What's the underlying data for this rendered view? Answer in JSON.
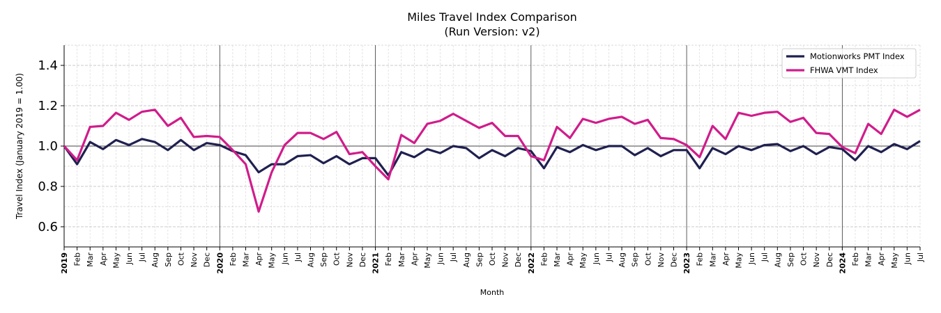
{
  "chart_data": {
    "type": "line",
    "title": "Miles Travel Index Comparison",
    "subtitle": "(Run Version: v2)",
    "x_label": "Month",
    "y_label": "Travel Index (January 2019 = 1.00)",
    "categories": [
      "2019",
      "Feb",
      "Mar",
      "Apr",
      "May",
      "Jun",
      "Jul",
      "Aug",
      "Sep",
      "Oct",
      "Nov",
      "Dec",
      "2020",
      "Feb",
      "Mar",
      "Apr",
      "May",
      "Jun",
      "Jul",
      "Aug",
      "Sep",
      "Oct",
      "Nov",
      "Dec",
      "2021",
      "Feb",
      "Mar",
      "Apr",
      "May",
      "Jun",
      "Jul",
      "Aug",
      "Sep",
      "Oct",
      "Nov",
      "Dec",
      "2022",
      "Feb",
      "Mar",
      "Apr",
      "May",
      "Jun",
      "Jul",
      "Aug",
      "Sep",
      "Oct",
      "Nov",
      "Dec",
      "2023",
      "Feb",
      "Mar",
      "Apr",
      "May",
      "Jun",
      "Jul",
      "Aug",
      "Sep",
      "Oct",
      "Nov",
      "Dec",
      "2024",
      "Feb",
      "Mar",
      "Apr",
      "May",
      "Jun",
      "Jul"
    ],
    "series": [
      {
        "name": "Motionworks PMT Index",
        "color": "#1f2050",
        "values": [
          1.0,
          0.91,
          1.02,
          0.985,
          1.03,
          1.005,
          1.035,
          1.02,
          0.98,
          1.03,
          0.98,
          1.015,
          1.005,
          0.975,
          0.955,
          0.87,
          0.91,
          0.91,
          0.95,
          0.955,
          0.915,
          0.95,
          0.91,
          0.94,
          0.94,
          0.855,
          0.97,
          0.945,
          0.985,
          0.965,
          1.0,
          0.99,
          0.94,
          0.98,
          0.95,
          0.99,
          0.975,
          0.89,
          0.995,
          0.97,
          1.005,
          0.98,
          1.0,
          1.0,
          0.955,
          0.99,
          0.95,
          0.98,
          0.98,
          0.89,
          0.99,
          0.96,
          1.0,
          0.98,
          1.005,
          1.01,
          0.975,
          1.0,
          0.96,
          0.995,
          0.985,
          0.93,
          1.0,
          0.97,
          1.01,
          0.985,
          1.025
        ]
      },
      {
        "name": "FHWA VMT Index",
        "color": "#d01c8b",
        "values": [
          1.0,
          0.93,
          1.095,
          1.1,
          1.165,
          1.13,
          1.17,
          1.18,
          1.1,
          1.14,
          1.045,
          1.05,
          1.045,
          0.98,
          0.91,
          0.675,
          0.87,
          1.005,
          1.065,
          1.065,
          1.035,
          1.07,
          0.96,
          0.97,
          0.9,
          0.835,
          1.055,
          1.015,
          1.11,
          1.125,
          1.16,
          1.125,
          1.09,
          1.115,
          1.05,
          1.05,
          0.95,
          0.93,
          1.095,
          1.04,
          1.135,
          1.115,
          1.135,
          1.145,
          1.11,
          1.13,
          1.04,
          1.035,
          1.005,
          0.945,
          1.1,
          1.035,
          1.165,
          1.15,
          1.165,
          1.17,
          1.12,
          1.14,
          1.065,
          1.06,
          0.995,
          0.965,
          1.11,
          1.06,
          1.18,
          1.145,
          1.18
        ]
      }
    ],
    "ylim": [
      0.5,
      1.5
    ],
    "yticks": [
      0.6,
      0.8,
      {
        "value": 1,
        "label": "1.0"
      },
      1.2,
      1.4
    ],
    "minor_yticks": [
      0.5,
      0.7,
      0.9,
      1.1,
      1.3,
      1.5
    ],
    "reference_line": 1,
    "grid": true,
    "legend": "upper right"
  }
}
